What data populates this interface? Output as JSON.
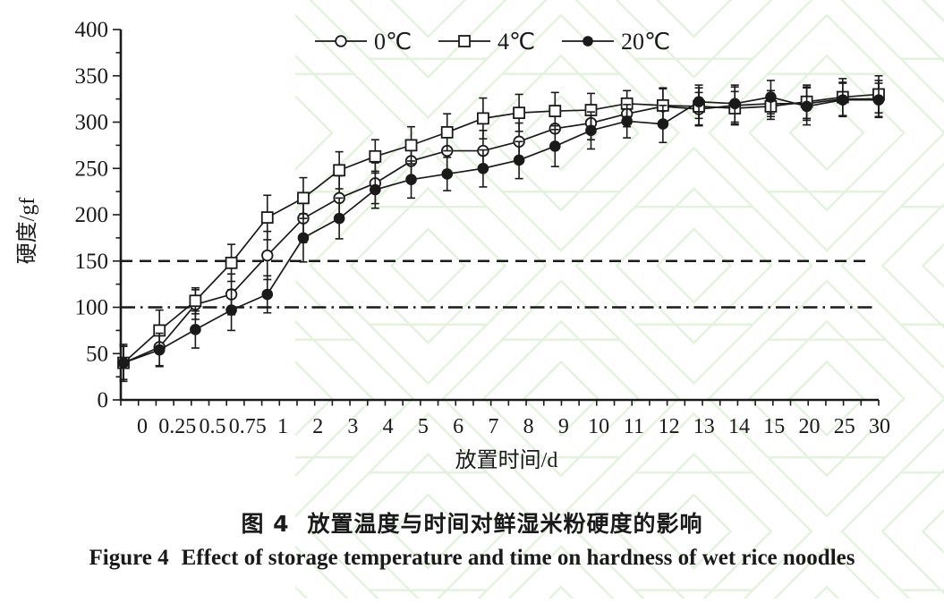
{
  "figure_caption": {
    "cn_label": "图 4",
    "cn_text": "放置温度与时间对鲜湿米粉硬度的影响",
    "en_label": "Figure 4",
    "en_text": "Effect of storage temperature and time on hardness of wet rice noodles"
  },
  "chart_data": {
    "type": "line",
    "title": "",
    "xlabel": "放置时间/d",
    "ylabel": "硬度/gf",
    "x_categories": [
      "0",
      "0.25",
      "0.5",
      "0.75",
      "1",
      "2",
      "3",
      "4",
      "5",
      "6",
      "7",
      "8",
      "9",
      "10",
      "11",
      "12",
      "13",
      "14",
      "15",
      "20",
      "25",
      "30"
    ],
    "ylim": [
      0,
      400
    ],
    "ytick_labels": [
      "0",
      "50",
      "100",
      "150",
      "200",
      "250",
      "300",
      "350",
      "400"
    ],
    "ytick_minor_step": 25,
    "grid": false,
    "legend_position": "top-center",
    "reference_lines": [
      {
        "y": 150,
        "style": "dashed"
      },
      {
        "y": 100,
        "style": "dash-dot"
      }
    ],
    "series": [
      {
        "name": "0℃",
        "marker": "open-circle",
        "values": [
          40,
          57,
          103,
          114,
          156,
          196,
          218,
          234,
          258,
          269,
          269,
          279,
          293,
          299,
          309,
          317,
          314,
          318,
          320,
          320,
          325,
          325
        ],
        "errors": [
          20,
          20,
          16,
          22,
          26,
          26,
          24,
          22,
          20,
          22,
          22,
          20,
          18,
          18,
          14,
          20,
          18,
          20,
          14,
          18,
          18,
          20
        ]
      },
      {
        "name": "4℃",
        "marker": "open-square",
        "values": [
          40,
          75,
          107,
          148,
          197,
          218,
          248,
          263,
          275,
          289,
          304,
          310,
          312,
          313,
          320,
          318,
          317,
          315,
          317,
          322,
          327,
          330
        ],
        "errors": [
          18,
          22,
          14,
          20,
          24,
          22,
          20,
          18,
          20,
          20,
          22,
          20,
          20,
          18,
          14,
          18,
          20,
          18,
          14,
          18,
          20,
          20
        ]
      },
      {
        "name": "20℃",
        "marker": "filled-circle",
        "values": [
          40,
          54,
          76,
          97,
          114,
          175,
          196,
          227,
          238,
          244,
          250,
          259,
          274,
          291,
          301,
          298,
          322,
          320,
          327,
          317,
          324,
          324
        ],
        "errors": [
          18,
          18,
          20,
          22,
          20,
          26,
          22,
          20,
          20,
          18,
          20,
          20,
          22,
          20,
          18,
          20,
          18,
          20,
          18,
          20,
          18,
          18
        ]
      }
    ],
    "colors": {
      "foreground": "#1a1a1a",
      "background": "#ffffff",
      "watermark_green": "#d9eed1"
    }
  }
}
